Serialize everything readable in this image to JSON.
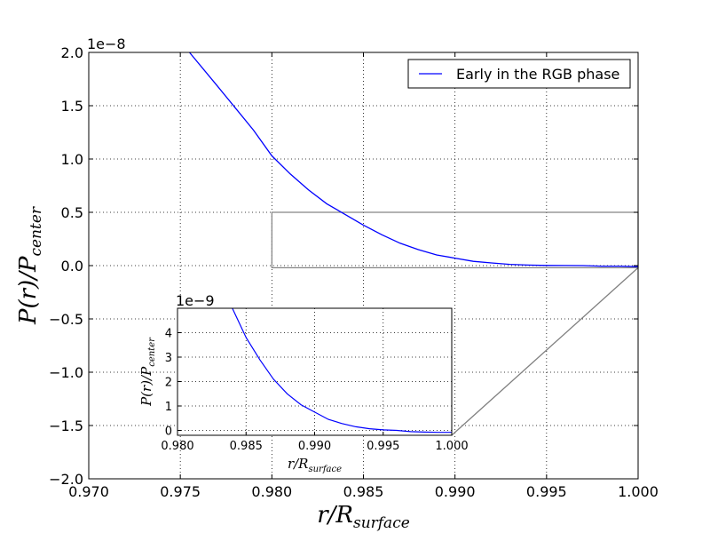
{
  "chart_data": [
    {
      "type": "line",
      "title": "",
      "xlabel": "r/R_surface",
      "xlabel_main": "r/R",
      "xlabel_sub": "surface",
      "ylabel": "P(r)/P_center",
      "ylabel_main": "P(r)/P",
      "ylabel_sub": "center",
      "offset_text": "1e−8",
      "scale": 1e-08,
      "xlim": [
        0.97,
        1.0
      ],
      "ylim": [
        -2.0,
        2.0
      ],
      "xticks": [
        0.97,
        0.975,
        0.98,
        0.985,
        0.99,
        0.995,
        1.0
      ],
      "xtick_labels": [
        "0.970",
        "0.975",
        "0.980",
        "0.985",
        "0.990",
        "0.995",
        "1.000"
      ],
      "yticks": [
        2.0,
        1.5,
        1.0,
        0.5,
        0.0,
        -0.5,
        -1.0,
        -1.5,
        -2.0
      ],
      "ytick_labels": [
        "2.0",
        "1.5",
        "1.0",
        "0.5",
        "0.0",
        "−0.5",
        "−1.0",
        "−1.5",
        "−2.0"
      ],
      "grid": true,
      "legend": {
        "placement": "top-right",
        "entries": [
          "Early in the RGB phase"
        ]
      },
      "series": [
        {
          "name": "Early in the RGB phase",
          "color": "#0000ff",
          "x": [
            0.9755,
            0.977,
            0.978,
            0.979,
            0.98,
            0.981,
            0.982,
            0.983,
            0.984,
            0.985,
            0.986,
            0.987,
            0.988,
            0.989,
            0.99,
            0.991,
            0.992,
            0.993,
            0.994,
            0.995,
            0.996,
            0.997,
            0.998,
            0.999,
            1.0
          ],
          "y": [
            2.0,
            1.69,
            1.48,
            1.27,
            1.03,
            0.86,
            0.71,
            0.58,
            0.48,
            0.38,
            0.29,
            0.21,
            0.15,
            0.1,
            0.07,
            0.04,
            0.025,
            0.012,
            0.005,
            0.002,
            0.0005,
            0.0,
            -0.005,
            -0.005,
            -0.01
          ]
        }
      ],
      "zoom_box": {
        "x": [
          0.98,
          1.0
        ],
        "y": [
          -0.02,
          0.5
        ],
        "color": "#808080"
      }
    },
    {
      "type": "line",
      "title": "",
      "xlabel": "r/R_surface",
      "xlabel_main": "r/R",
      "xlabel_sub": "surface",
      "ylabel": "P(r)/P_center",
      "ylabel_main": "P(r)/P",
      "ylabel_sub": "center",
      "offset_text": "1e−9",
      "scale": 1e-09,
      "xlim": [
        0.98,
        1.0
      ],
      "ylim": [
        -0.2,
        5.0
      ],
      "xticks": [
        0.98,
        0.985,
        0.99,
        0.995,
        1.0
      ],
      "xtick_labels": [
        "0.980",
        "0.985",
        "0.990",
        "0.995",
        "1.000"
      ],
      "yticks": [
        0,
        1,
        2,
        3,
        4
      ],
      "ytick_labels": [
        "0",
        "1",
        "2",
        "3",
        "4"
      ],
      "grid": true,
      "series": [
        {
          "color": "#0000ff",
          "x": [
            0.984,
            0.985,
            0.986,
            0.987,
            0.988,
            0.989,
            0.99,
            0.991,
            0.992,
            0.993,
            0.994,
            0.995,
            0.996,
            0.997,
            0.998,
            0.999,
            1.0
          ],
          "y": [
            5.0,
            3.8,
            2.9,
            2.1,
            1.5,
            1.05,
            0.75,
            0.45,
            0.28,
            0.15,
            0.07,
            0.02,
            0.0,
            -0.05,
            -0.07,
            -0.08,
            -0.08
          ]
        }
      ]
    }
  ]
}
